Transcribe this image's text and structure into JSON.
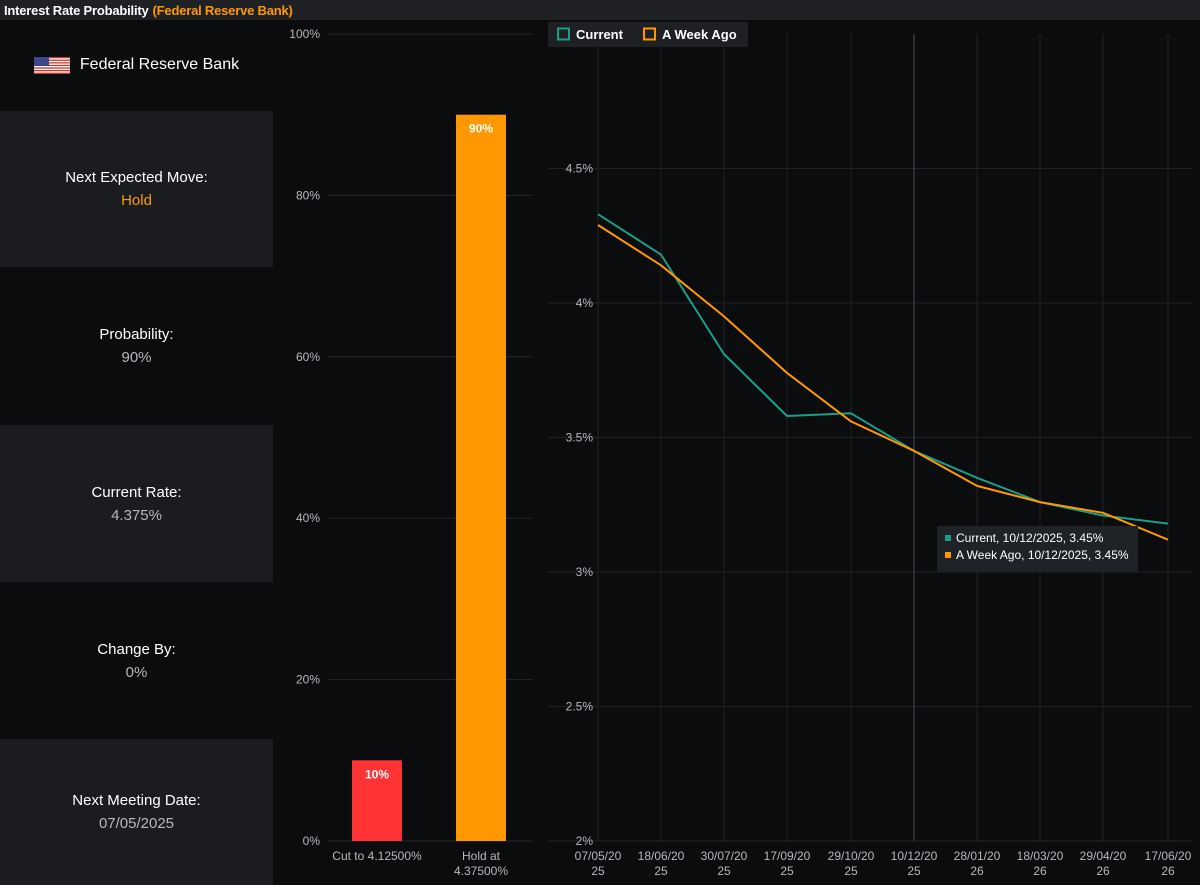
{
  "header": {
    "title": "Interest Rate Probability",
    "subtitle": "(Federal Reserve Bank)"
  },
  "bank": {
    "name": "Federal Reserve Bank",
    "flag_icon": "us-flag-icon"
  },
  "info": {
    "next_move_label": "Next Expected Move:",
    "next_move_value": "Hold",
    "probability_label": "Probability:",
    "probability_value": "90%",
    "current_rate_label": "Current Rate:",
    "current_rate_value": "4.375%",
    "change_by_label": "Change By:",
    "change_by_value": "0%",
    "next_meeting_label": "Next Meeting Date:",
    "next_meeting_value": "07/05/2025"
  },
  "colors": {
    "accent": "#ff9800",
    "cut": "#ff3333",
    "hold": "#ff9800",
    "current": "#1a9e8a",
    "week_ago": "#ff9800",
    "panel_shade": "#1a1c20",
    "background": "#0b0c0e"
  },
  "chart_data": [
    {
      "type": "bar",
      "categories": [
        [
          "Cut to 4.12500%"
        ],
        [
          "Hold at",
          "4.37500%"
        ]
      ],
      "values": [
        10,
        90
      ],
      "data_labels": [
        "10%",
        "90%"
      ],
      "colors": [
        "#ff3333",
        "#ff9800"
      ],
      "ylim": [
        0,
        100
      ],
      "yticks": [
        {
          "value": 0,
          "label": "0%"
        },
        {
          "value": 20,
          "label": "20%"
        },
        {
          "value": 40,
          "label": "40%"
        },
        {
          "value": 60,
          "label": "60%"
        },
        {
          "value": 80,
          "label": "80%"
        },
        {
          "value": 100,
          "label": "100%"
        }
      ],
      "grid": true
    },
    {
      "type": "line",
      "legend": [
        {
          "name": "Current",
          "color": "#1a9e8a"
        },
        {
          "name": "A Week Ago",
          "color": "#ff9800"
        }
      ],
      "legend_placement": "top-left",
      "x_labels": [
        [
          "07/05/20",
          "25"
        ],
        [
          "18/06/20",
          "25"
        ],
        [
          "30/07/20",
          "25"
        ],
        [
          "17/09/20",
          "25"
        ],
        [
          "29/10/20",
          "25"
        ],
        [
          "10/12/20",
          "25"
        ],
        [
          "28/01/20",
          "26"
        ],
        [
          "18/03/20",
          "26"
        ],
        [
          "29/04/20",
          "26"
        ],
        [
          "17/06/20",
          "26"
        ]
      ],
      "ylim": [
        2,
        5
      ],
      "yticks": [
        {
          "value": 2,
          "label": "2%"
        },
        {
          "value": 2.5,
          "label": "2.5%"
        },
        {
          "value": 3,
          "label": "3%"
        },
        {
          "value": 3.5,
          "label": "3.5%"
        },
        {
          "value": 4,
          "label": "4%"
        },
        {
          "value": 4.5,
          "label": "4.5%"
        }
      ],
      "series": [
        {
          "name": "Current",
          "color": "#1a9e8a",
          "values": [
            4.33,
            4.18,
            3.81,
            3.58,
            3.59,
            3.45,
            3.35,
            3.26,
            3.21,
            3.18
          ]
        },
        {
          "name": "A Week Ago",
          "color": "#ff9800",
          "values": [
            4.29,
            4.14,
            3.95,
            3.74,
            3.56,
            3.45,
            3.32,
            3.26,
            3.22,
            3.12
          ]
        }
      ],
      "crosshair_index": 5,
      "tooltip": [
        {
          "color": "#1a9e8a",
          "text": "Current, 10/12/2025, 3.45%"
        },
        {
          "color": "#ff9800",
          "text": "A Week Ago, 10/12/2025, 3.45%"
        }
      ],
      "grid": true
    }
  ]
}
